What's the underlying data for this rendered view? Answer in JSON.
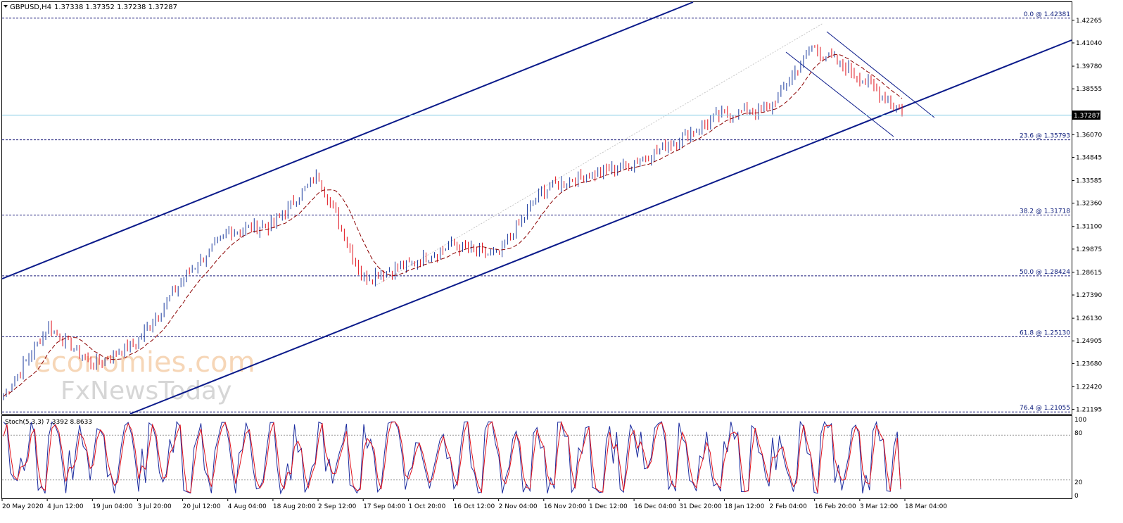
{
  "header": {
    "symbol": "GBPUSD,H4",
    "ohlc": "1.37338 1.37352 1.37238 1.37287"
  },
  "watermark": {
    "line1": "economies.com",
    "line2": "FxNewsToday"
  },
  "indicator": {
    "label": "Stoch(5,3,3) 7.3392 8.8633",
    "levels": [
      "100",
      "80",
      "20",
      "0"
    ]
  },
  "current_price": "1.37287",
  "colors": {
    "up_candle": "#1a3a9e",
    "down_candle": "#e0101a",
    "channel": "#0a1a8a",
    "fib_line": "#1a1a7a",
    "ma": "#8b0000",
    "stoch_main": "#1a2a9e",
    "stoch_signal": "#e0101a",
    "current_line": "#7ec8e3"
  },
  "chart_data": {
    "type": "line",
    "title": "GBPUSD,H4",
    "ylim": [
      1.2095,
      1.4325
    ],
    "y_ticks": [
      "1.42265",
      "1.41040",
      "1.39780",
      "1.38555",
      "1.37287",
      "1.36070",
      "1.34845",
      "1.33585",
      "1.32360",
      "1.31100",
      "1.29875",
      "1.28615",
      "1.27390",
      "1.26130",
      "1.24905",
      "1.23680",
      "1.22420",
      "1.21195"
    ],
    "x_ticks": [
      "20 May 2020",
      "4 Jun 12:00",
      "19 Jun 04:00",
      "3 Jul 20:00",
      "20 Jul 12:00",
      "4 Aug 04:00",
      "18 Aug 20:00",
      "2 Sep 12:00",
      "17 Sep 04:00",
      "1 Oct 20:00",
      "16 Oct 12:00",
      "2 Nov 04:00",
      "16 Nov 20:00",
      "1 Dec 12:00",
      "16 Dec 04:00",
      "31 Dec 20:00",
      "18 Jan 12:00",
      "2 Feb 04:00",
      "16 Feb 20:00",
      "3 Mar 12:00",
      "18 Mar 04:00"
    ],
    "fib_levels": [
      {
        "label": "0.0 @ 1.42381",
        "value": 1.42381
      },
      {
        "label": "23.6 @ 1.35793",
        "value": 1.35793
      },
      {
        "label": "38.2 @ 1.31718",
        "value": 1.31718
      },
      {
        "label": "50.0 @ 1.28424",
        "value": 1.28424
      },
      {
        "label": "61.8 @ 1.25130",
        "value": 1.2513
      },
      {
        "label": "76.4 @ 1.21055",
        "value": 1.21055
      }
    ],
    "series": [
      {
        "name": "GBPUSD,H4",
        "x": [
          "20 May 2020",
          "4 Jun 12:00",
          "19 Jun 04:00",
          "3 Jul 20:00",
          "20 Jul 12:00",
          "4 Aug 04:00",
          "18 Aug 20:00",
          "2 Sep 12:00",
          "17 Sep 04:00",
          "1 Oct 20:00",
          "16 Oct 12:00",
          "2 Nov 04:00",
          "16 Nov 20:00",
          "1 Dec 12:00",
          "16 Dec 04:00",
          "31 Dec 20:00",
          "18 Jan 12:00",
          "2 Feb 04:00",
          "16 Feb 20:00",
          "3 Mar 12:00",
          "18 Mar 04:00"
        ],
        "values": [
          1.219,
          1.257,
          1.236,
          1.249,
          1.283,
          1.308,
          1.312,
          1.339,
          1.283,
          1.29,
          1.301,
          1.295,
          1.331,
          1.339,
          1.345,
          1.358,
          1.372,
          1.374,
          1.408,
          1.393,
          1.373
        ]
      }
    ],
    "stochastic": {
      "name": "Stoch(5,3,3)",
      "ylim": [
        0,
        100
      ],
      "levels": [
        80,
        20
      ],
      "last_main": 7.3392,
      "last_signal": 8.8633
    }
  }
}
